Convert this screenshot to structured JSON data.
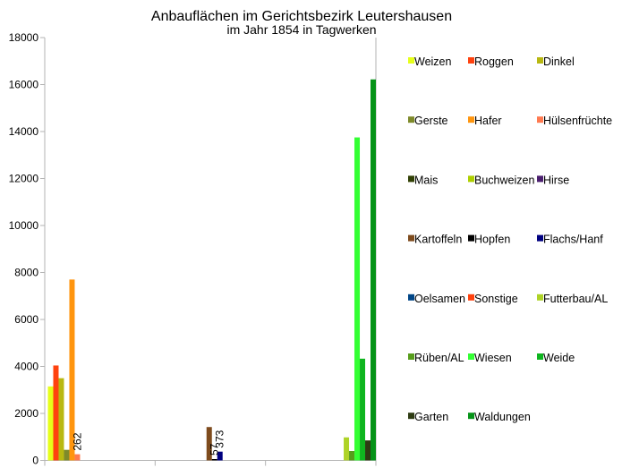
{
  "chart_data": {
    "type": "bar",
    "title": "Anbauflächen im Gerichtsbezirk Leutershausen",
    "subtitle": "im Jahr 1854 in Tagwerken",
    "xlabel": "",
    "ylabel": "",
    "ylim": [
      0,
      18000
    ],
    "yticks": [
      0,
      2000,
      4000,
      6000,
      8000,
      10000,
      12000,
      14000,
      16000,
      18000
    ],
    "grid": false,
    "legend_position": "right",
    "categories": [
      "",
      "",
      ""
    ],
    "series": [
      {
        "name": "Weizen",
        "color": "#e6ff1a",
        "values": [
          3150,
          0,
          0
        ]
      },
      {
        "name": "Roggen",
        "color": "#ff420e",
        "values": [
          4040,
          0,
          0
        ]
      },
      {
        "name": "Dinkel",
        "color": "#b8b811",
        "values": [
          3500,
          0,
          0
        ]
      },
      {
        "name": "Gerste",
        "color": "#7e8a2a",
        "values": [
          450,
          0,
          0
        ]
      },
      {
        "name": "Hafer",
        "color": "#ff950e",
        "values": [
          7700,
          0,
          0
        ]
      },
      {
        "name": "Hülsenfrüchte",
        "color": "#ff7a50",
        "values": [
          262,
          0,
          0
        ],
        "labels": [
          "262",
          null,
          null
        ]
      },
      {
        "name": "Mais",
        "color": "#314004",
        "values": [
          0,
          0,
          0
        ]
      },
      {
        "name": "Buchweizen",
        "color": "#aecf00",
        "values": [
          0,
          0,
          0
        ]
      },
      {
        "name": "Hirse",
        "color": "#4b1f6f",
        "values": [
          0,
          0,
          0
        ]
      },
      {
        "name": "Kartoffeln",
        "color": "#7e4b1d",
        "values": [
          0,
          1420,
          0
        ]
      },
      {
        "name": "Hopfen",
        "color": "#000000",
        "values": [
          0,
          57,
          0
        ],
        "labels": [
          null,
          "57",
          null
        ]
      },
      {
        "name": "Flachs/Hanf",
        "color": "#000080",
        "values": [
          0,
          373,
          0
        ],
        "labels": [
          null,
          "373",
          null
        ]
      },
      {
        "name": "Oelsamen",
        "color": "#004586",
        "values": [
          0,
          0,
          0
        ]
      },
      {
        "name": "Sonstige",
        "color": "#ff420e",
        "values": [
          0,
          0,
          0
        ]
      },
      {
        "name": "Futterbau/AL",
        "color": "#aed327",
        "values": [
          0,
          0,
          980
        ]
      },
      {
        "name": "Rüben/AL",
        "color": "#579d1c",
        "values": [
          0,
          0,
          400
        ]
      },
      {
        "name": "Wiesen",
        "color": "#33ff33",
        "values": [
          0,
          0,
          13750
        ]
      },
      {
        "name": "Weide",
        "color": "#0fb51f",
        "values": [
          0,
          0,
          4330
        ]
      },
      {
        "name": "Garten",
        "color": "#2e3b13",
        "values": [
          0,
          0,
          850
        ]
      },
      {
        "name": "Waldungen",
        "color": "#069318",
        "values": [
          0,
          0,
          16220
        ]
      }
    ]
  }
}
